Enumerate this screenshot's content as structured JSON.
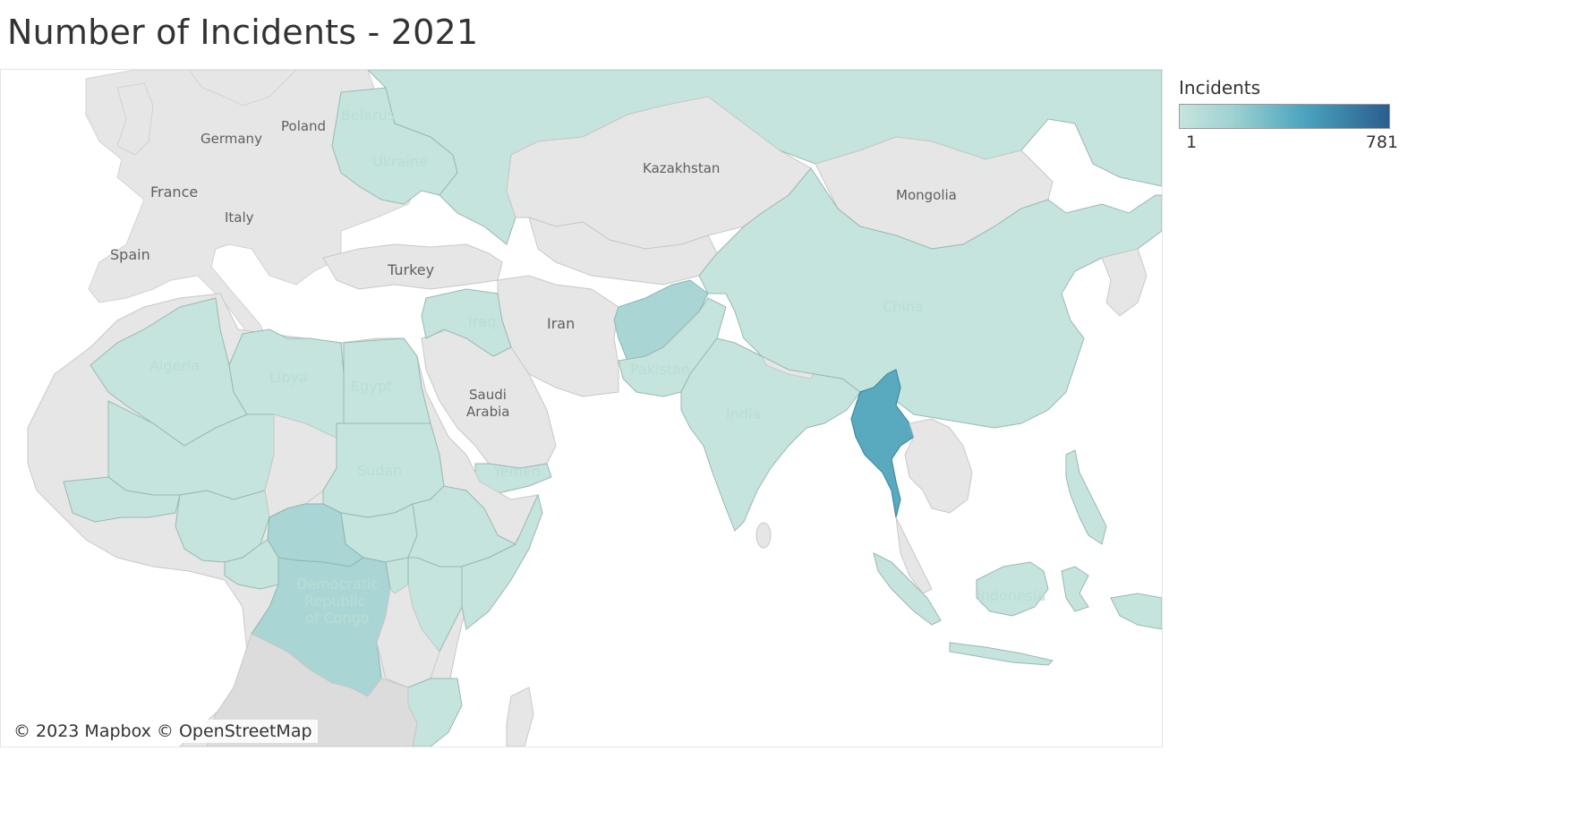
{
  "title": "Number of Incidents - 2021",
  "legend": {
    "title": "Incidents",
    "min_label": "1",
    "max_label": "781",
    "colors": [
      "#c6e4de",
      "#9fd2d2",
      "#4aa3be",
      "#2b5d8e"
    ]
  },
  "attribution": "© 2023 Mapbox © OpenStreetMap",
  "map": {
    "base_land_color": "#e6e6e6",
    "country_labels": {
      "poland": "Poland",
      "belarus": "Belarus",
      "germany": "Germany",
      "ukraine": "Ukraine",
      "france": "France",
      "italy": "Italy",
      "spain": "Spain",
      "turkey": "Turkey",
      "kazakhstan": "Kazakhstan",
      "mongolia": "Mongolia",
      "china": "China",
      "iran": "Iran",
      "iraq": "Iraq",
      "saudi_arabia": "Saudi\nArabia",
      "saudi_line1": "Saudi",
      "saudi_line2": "Arabia",
      "pakistan": "Pakistan",
      "india": "India",
      "algeria": "Algeria",
      "libya": "Libya",
      "egypt": "Egypt",
      "sudan": "Sudan",
      "yemen": "Yemen",
      "drc_line1": "Democratic",
      "drc_line2": "Republic",
      "drc_line3": "of Congo",
      "indonesia": "Indonesia"
    },
    "highlighted_countries": [
      {
        "name": "Myanmar",
        "level": "high",
        "color": "#5aaabf"
      },
      {
        "name": "Afghanistan",
        "level": "medium",
        "color": "#a9d6d4"
      },
      {
        "name": "Democratic Republic of Congo",
        "level": "medium",
        "color": "#a9d6d4"
      },
      {
        "name": "Central African Republic",
        "level": "medium",
        "color": "#a9d6d4"
      },
      {
        "name": "Russia",
        "level": "low",
        "color": "#c6e4de"
      },
      {
        "name": "China",
        "level": "low",
        "color": "#c6e4de"
      },
      {
        "name": "India",
        "level": "low",
        "color": "#c6e4de"
      },
      {
        "name": "Pakistan",
        "level": "low",
        "color": "#c6e4de"
      }
    ]
  }
}
